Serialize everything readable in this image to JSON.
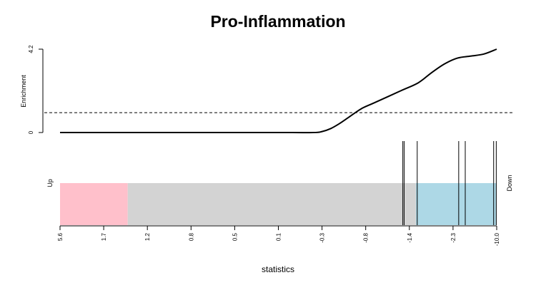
{
  "chart_data": {
    "type": "line",
    "title": "Pro-Inflammation",
    "ylabel": "Enrichment",
    "xlabel": "statistics",
    "ylim": [
      0,
      4.2
    ],
    "ytick_labels": [
      "0",
      "4.2"
    ],
    "threshold_line": {
      "y": 1,
      "style": "dashed"
    },
    "enrichment_curve": {
      "x": [
        0,
        0.1,
        0.2,
        0.3,
        0.4,
        0.5,
        0.58,
        0.6,
        0.62,
        0.64,
        0.66,
        0.69,
        0.72,
        0.78,
        0.82,
        0.85,
        0.88,
        0.91,
        0.94,
        0.97,
        1.0
      ],
      "y": [
        0,
        0,
        0,
        0,
        0,
        0,
        0,
        0.05,
        0.2,
        0.45,
        0.75,
        1.2,
        1.5,
        2.1,
        2.5,
        3.0,
        3.45,
        3.75,
        3.85,
        3.95,
        4.2
      ]
    },
    "gene_hits": [
      0.785,
      0.788,
      0.818,
      0.913,
      0.928,
      0.993,
      0.999
    ],
    "side_labels": {
      "up": "Up",
      "down": "Down"
    },
    "ranked_bar": [
      {
        "from": 0,
        "to": 0.155,
        "color": "#ffc0cb"
      },
      {
        "from": 0.155,
        "to": 0.815,
        "color": "#d3d3d3"
      },
      {
        "from": 0.815,
        "to": 1.0,
        "color": "#add8e6"
      }
    ],
    "x_ticks": [
      {
        "pos": 0.0,
        "label": "5.6"
      },
      {
        "pos": 0.1,
        "label": "1.7"
      },
      {
        "pos": 0.2,
        "label": "1.2"
      },
      {
        "pos": 0.3,
        "label": "0.8"
      },
      {
        "pos": 0.4,
        "label": "0.5"
      },
      {
        "pos": 0.5,
        "label": "0.1"
      },
      {
        "pos": 0.6,
        "label": "-0.3"
      },
      {
        "pos": 0.7,
        "label": "-0.8"
      },
      {
        "pos": 0.8,
        "label": "-1.4"
      },
      {
        "pos": 0.9,
        "label": "-2.3"
      },
      {
        "pos": 1.0,
        "label": "-10.0"
      }
    ]
  }
}
